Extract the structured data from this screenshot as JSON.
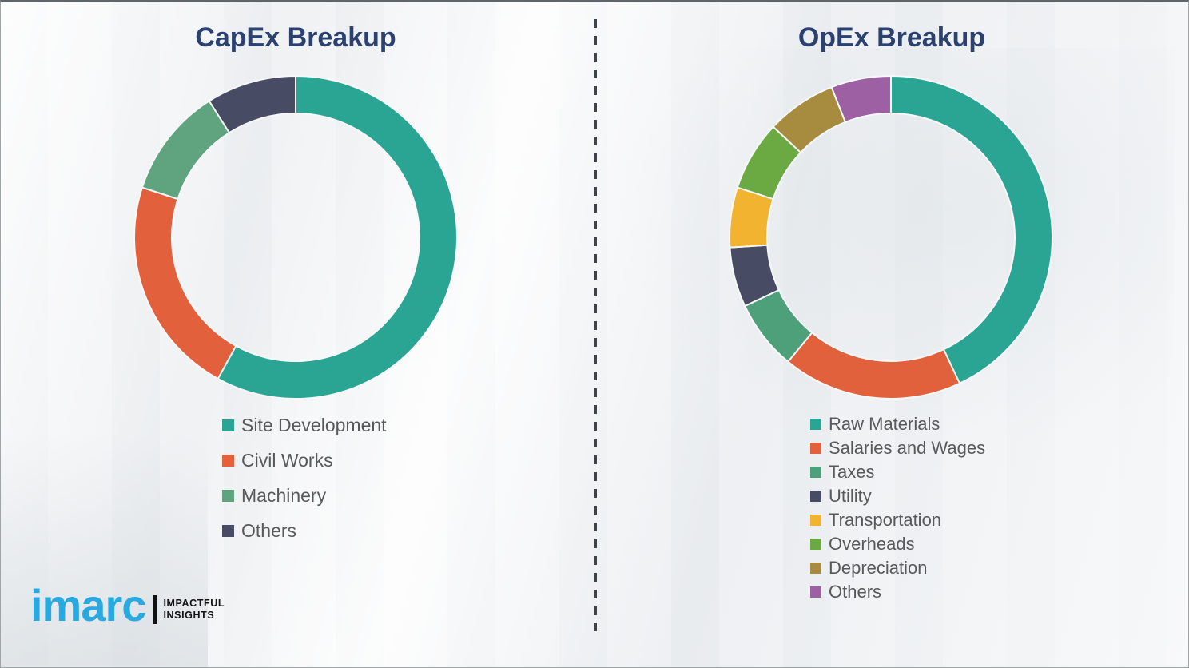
{
  "chart_data": [
    {
      "type": "pie",
      "variant": "donut",
      "title": "CapEx Breakup",
      "labels": [
        "Site Development",
        "Civil Works",
        "Machinery",
        "Others"
      ],
      "values": [
        58,
        22,
        11,
        9
      ],
      "values_note": "percent of ring, estimated from arc angles; chart shows no numeric labels",
      "colors": [
        "#2AA493",
        "#E2603C",
        "#5FA47E",
        "#474C64"
      ],
      "start_angle_deg": 0,
      "direction": "clockwise",
      "legend_position": "below-left",
      "title_color": "#2B4170"
    },
    {
      "type": "pie",
      "variant": "donut",
      "title": "OpEx Breakup",
      "labels": [
        "Raw Materials",
        "Salaries and Wages",
        "Taxes",
        "Utility",
        "Transportation",
        "Overheads",
        "Depreciation",
        "Others"
      ],
      "values": [
        43,
        18,
        7,
        6,
        6,
        7,
        7,
        6
      ],
      "values_note": "percent of ring, estimated from arc angles; chart shows no numeric labels",
      "colors": [
        "#2AA493",
        "#E0613C",
        "#4DA07A",
        "#474C64",
        "#F2B331",
        "#6BAA43",
        "#A78C3F",
        "#9D61A3"
      ],
      "start_angle_deg": 0,
      "direction": "clockwise",
      "legend_position": "below-left",
      "title_color": "#2B4170"
    }
  ],
  "divider": {
    "style": "vertical-dashed",
    "color": "#3E4347"
  },
  "logo": {
    "brand": "imarc",
    "brand_color": "#29A9E0",
    "tagline": [
      "IMPACTFUL",
      "INSIGHTS"
    ]
  }
}
